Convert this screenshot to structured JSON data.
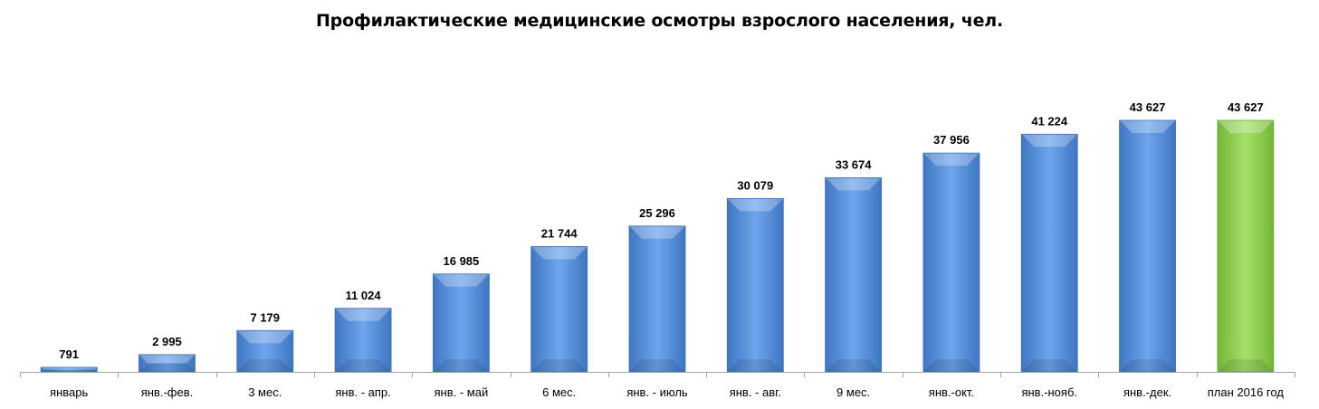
{
  "chart_data": {
    "type": "bar",
    "title": "Профилактические медицинские осмотры взрослого населения, чел.",
    "categories": [
      "январь",
      "янв.-фев.",
      "3 мес.",
      "янв. - апр.",
      "янв. - май",
      "6 мес.",
      "янв. - июль",
      "янв. - авг.",
      "9 мес.",
      "янв.-окт.",
      "янв.-нояб.",
      "янв.-дек.",
      "план 2016 год"
    ],
    "values": [
      791,
      2995,
      7179,
      11024,
      16985,
      21744,
      25296,
      30079,
      33674,
      37956,
      41224,
      43627,
      43627
    ],
    "value_labels": [
      "791",
      "2 995",
      "7 179",
      "11 024",
      "16 985",
      "21 744",
      "25 296",
      "30 079",
      "33 674",
      "37 956",
      "41 224",
      "43 627",
      "43 627"
    ],
    "highlight_index": 12,
    "colors": {
      "bar": "#5b95dd",
      "bar_highlight": "#92d050",
      "axis": "#a6a6a6"
    },
    "ylim": [
      0,
      43627
    ],
    "grid": false,
    "legend": "none"
  }
}
